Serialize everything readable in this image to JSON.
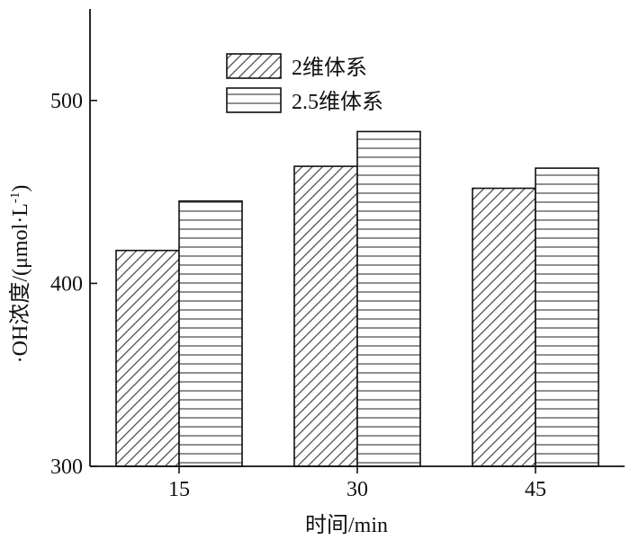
{
  "chart_data": {
    "type": "bar",
    "categories": [
      "15",
      "30",
      "45"
    ],
    "series": [
      {
        "name": "2维体系",
        "values": [
          418,
          464,
          452
        ],
        "pattern": "diagonal-hatch"
      },
      {
        "name": "2.5维体系",
        "values": [
          445,
          483,
          463
        ],
        "pattern": "horizontal-lines"
      }
    ],
    "xlabel": "时间/min",
    "ylabel_main": "·OH浓度/(μmol·L",
    "ylabel_sup": "-1",
    "ylabel_close": ")",
    "ylim": [
      300,
      550
    ],
    "yticks": [
      300,
      400,
      500
    ],
    "grid": false,
    "legend_position": "top-center",
    "colors": {
      "stroke": "#111111",
      "hatch": "#333333",
      "background": "#ffffff"
    }
  }
}
